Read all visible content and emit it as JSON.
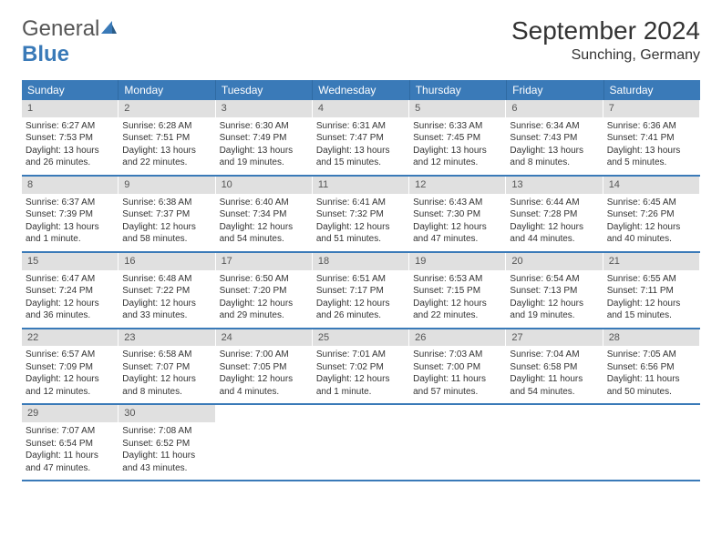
{
  "logo": {
    "text1": "General",
    "text2": "Blue",
    "color1": "#555555",
    "color2": "#3a7ab8"
  },
  "title": "September 2024",
  "location": "Sunching, Germany",
  "colors": {
    "header_bg": "#3a7ab8",
    "daynum_bg": "#e0e0e0",
    "border": "#3a7ab8"
  },
  "weekdays": [
    "Sunday",
    "Monday",
    "Tuesday",
    "Wednesday",
    "Thursday",
    "Friday",
    "Saturday"
  ],
  "weeks": [
    [
      {
        "n": "1",
        "sr": "6:27 AM",
        "ss": "7:53 PM",
        "dl": "13 hours and 26 minutes."
      },
      {
        "n": "2",
        "sr": "6:28 AM",
        "ss": "7:51 PM",
        "dl": "13 hours and 22 minutes."
      },
      {
        "n": "3",
        "sr": "6:30 AM",
        "ss": "7:49 PM",
        "dl": "13 hours and 19 minutes."
      },
      {
        "n": "4",
        "sr": "6:31 AM",
        "ss": "7:47 PM",
        "dl": "13 hours and 15 minutes."
      },
      {
        "n": "5",
        "sr": "6:33 AM",
        "ss": "7:45 PM",
        "dl": "13 hours and 12 minutes."
      },
      {
        "n": "6",
        "sr": "6:34 AM",
        "ss": "7:43 PM",
        "dl": "13 hours and 8 minutes."
      },
      {
        "n": "7",
        "sr": "6:36 AM",
        "ss": "7:41 PM",
        "dl": "13 hours and 5 minutes."
      }
    ],
    [
      {
        "n": "8",
        "sr": "6:37 AM",
        "ss": "7:39 PM",
        "dl": "13 hours and 1 minute."
      },
      {
        "n": "9",
        "sr": "6:38 AM",
        "ss": "7:37 PM",
        "dl": "12 hours and 58 minutes."
      },
      {
        "n": "10",
        "sr": "6:40 AM",
        "ss": "7:34 PM",
        "dl": "12 hours and 54 minutes."
      },
      {
        "n": "11",
        "sr": "6:41 AM",
        "ss": "7:32 PM",
        "dl": "12 hours and 51 minutes."
      },
      {
        "n": "12",
        "sr": "6:43 AM",
        "ss": "7:30 PM",
        "dl": "12 hours and 47 minutes."
      },
      {
        "n": "13",
        "sr": "6:44 AM",
        "ss": "7:28 PM",
        "dl": "12 hours and 44 minutes."
      },
      {
        "n": "14",
        "sr": "6:45 AM",
        "ss": "7:26 PM",
        "dl": "12 hours and 40 minutes."
      }
    ],
    [
      {
        "n": "15",
        "sr": "6:47 AM",
        "ss": "7:24 PM",
        "dl": "12 hours and 36 minutes."
      },
      {
        "n": "16",
        "sr": "6:48 AM",
        "ss": "7:22 PM",
        "dl": "12 hours and 33 minutes."
      },
      {
        "n": "17",
        "sr": "6:50 AM",
        "ss": "7:20 PM",
        "dl": "12 hours and 29 minutes."
      },
      {
        "n": "18",
        "sr": "6:51 AM",
        "ss": "7:17 PM",
        "dl": "12 hours and 26 minutes."
      },
      {
        "n": "19",
        "sr": "6:53 AM",
        "ss": "7:15 PM",
        "dl": "12 hours and 22 minutes."
      },
      {
        "n": "20",
        "sr": "6:54 AM",
        "ss": "7:13 PM",
        "dl": "12 hours and 19 minutes."
      },
      {
        "n": "21",
        "sr": "6:55 AM",
        "ss": "7:11 PM",
        "dl": "12 hours and 15 minutes."
      }
    ],
    [
      {
        "n": "22",
        "sr": "6:57 AM",
        "ss": "7:09 PM",
        "dl": "12 hours and 12 minutes."
      },
      {
        "n": "23",
        "sr": "6:58 AM",
        "ss": "7:07 PM",
        "dl": "12 hours and 8 minutes."
      },
      {
        "n": "24",
        "sr": "7:00 AM",
        "ss": "7:05 PM",
        "dl": "12 hours and 4 minutes."
      },
      {
        "n": "25",
        "sr": "7:01 AM",
        "ss": "7:02 PM",
        "dl": "12 hours and 1 minute."
      },
      {
        "n": "26",
        "sr": "7:03 AM",
        "ss": "7:00 PM",
        "dl": "11 hours and 57 minutes."
      },
      {
        "n": "27",
        "sr": "7:04 AM",
        "ss": "6:58 PM",
        "dl": "11 hours and 54 minutes."
      },
      {
        "n": "28",
        "sr": "7:05 AM",
        "ss": "6:56 PM",
        "dl": "11 hours and 50 minutes."
      }
    ],
    [
      {
        "n": "29",
        "sr": "7:07 AM",
        "ss": "6:54 PM",
        "dl": "11 hours and 47 minutes."
      },
      {
        "n": "30",
        "sr": "7:08 AM",
        "ss": "6:52 PM",
        "dl": "11 hours and 43 minutes."
      },
      null,
      null,
      null,
      null,
      null
    ]
  ]
}
